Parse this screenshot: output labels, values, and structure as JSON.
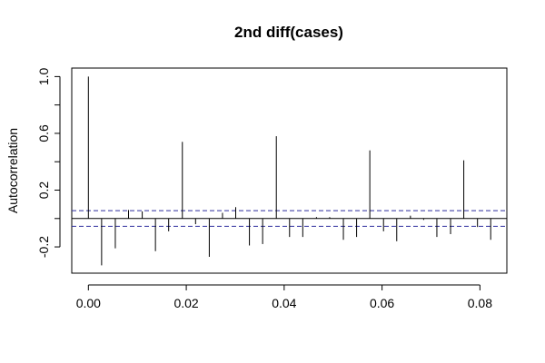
{
  "chart_data": {
    "type": "bar",
    "title": "2nd diff(cases)",
    "xlabel": "",
    "ylabel": "Autocorrelation",
    "xlim": [
      -0.0034,
      0.0855
    ],
    "ylim": [
      -0.385,
      1.06
    ],
    "x_ticks": [
      0.0,
      0.02,
      0.04,
      0.06,
      0.08
    ],
    "x_tick_labels": [
      "0.00",
      "0.02",
      "0.04",
      "0.06",
      "0.08"
    ],
    "y_ticks": [
      -0.2,
      0.2,
      0.6,
      1.0
    ],
    "y_tick_labels": [
      "-0.2",
      "0.2",
      "0.6",
      "1.0"
    ],
    "y_minor_ticks": [
      0.0,
      0.4,
      0.8
    ],
    "confidence_band": [
      -0.055,
      0.055
    ],
    "grid": false,
    "x": [
      0.0,
      0.0027,
      0.0055,
      0.0082,
      0.011,
      0.0137,
      0.0164,
      0.0192,
      0.0219,
      0.0247,
      0.0274,
      0.0301,
      0.0329,
      0.0356,
      0.0384,
      0.0411,
      0.0438,
      0.0466,
      0.0493,
      0.0521,
      0.0548,
      0.0575,
      0.0603,
      0.063,
      0.0658,
      0.0685,
      0.0712,
      0.074,
      0.0767,
      0.0795,
      0.0822
    ],
    "values": [
      1.0,
      -0.33,
      -0.21,
      0.06,
      0.05,
      -0.23,
      -0.09,
      0.54,
      -0.04,
      -0.27,
      0.04,
      0.08,
      -0.19,
      -0.18,
      0.58,
      -0.13,
      -0.13,
      0.01,
      0.01,
      -0.15,
      -0.13,
      0.48,
      -0.09,
      -0.16,
      0.02,
      -0.01,
      -0.13,
      -0.11,
      0.41,
      -0.06,
      -0.15
    ]
  }
}
